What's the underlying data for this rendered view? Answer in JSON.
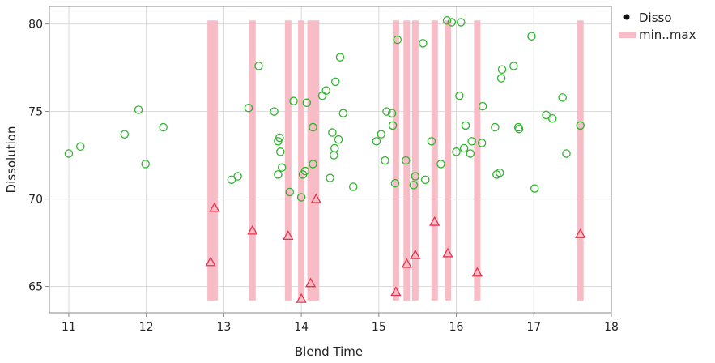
{
  "chart_data": {
    "type": "scatter",
    "title": "",
    "xlabel": "Blend Time",
    "ylabel": "Dissolution",
    "xlim": [
      10.75,
      18.0
    ],
    "ylim": [
      63.5,
      81.0
    ],
    "x_ticks": [
      11,
      12,
      13,
      14,
      15,
      16,
      17,
      18
    ],
    "y_ticks": [
      65,
      70,
      75,
      80
    ],
    "grid": true,
    "legend": {
      "position": "top-right",
      "entries": [
        {
          "label": "Disso",
          "marker": "dot"
        },
        {
          "label": "min..max",
          "marker": "band"
        }
      ]
    },
    "colors": {
      "point": "#2db52d",
      "min_point": "#e8304a",
      "band": "#f7bcc6",
      "grid": "#d9d9d9",
      "axis": "#888888"
    },
    "series": [
      {
        "name": "Disso",
        "points": [
          [
            11.0,
            72.6
          ],
          [
            11.15,
            73.0
          ],
          [
            11.72,
            73.7
          ],
          [
            11.9,
            75.1
          ],
          [
            11.99,
            72.0
          ],
          [
            12.22,
            74.1
          ],
          [
            13.1,
            71.1
          ],
          [
            13.18,
            71.3
          ],
          [
            13.32,
            75.2
          ],
          [
            13.45,
            77.6
          ],
          [
            13.65,
            75.0
          ],
          [
            13.7,
            73.3
          ],
          [
            13.72,
            73.5
          ],
          [
            13.7,
            71.4
          ],
          [
            13.73,
            72.7
          ],
          [
            13.75,
            71.8
          ],
          [
            13.85,
            70.4
          ],
          [
            13.9,
            75.6
          ],
          [
            14.0,
            70.1
          ],
          [
            14.02,
            71.4
          ],
          [
            14.05,
            71.6
          ],
          [
            14.07,
            75.5
          ],
          [
            14.15,
            74.1
          ],
          [
            14.15,
            72.0
          ],
          [
            14.27,
            75.9
          ],
          [
            14.32,
            76.2
          ],
          [
            14.37,
            71.2
          ],
          [
            14.4,
            73.8
          ],
          [
            14.42,
            72.5
          ],
          [
            14.43,
            72.9
          ],
          [
            14.44,
            76.7
          ],
          [
            14.48,
            73.4
          ],
          [
            14.5,
            78.1
          ],
          [
            14.54,
            74.9
          ],
          [
            14.67,
            70.7
          ],
          [
            14.97,
            73.3
          ],
          [
            15.03,
            73.7
          ],
          [
            15.08,
            72.2
          ],
          [
            15.1,
            75.0
          ],
          [
            15.17,
            74.9
          ],
          [
            15.18,
            74.2
          ],
          [
            15.21,
            70.9
          ],
          [
            15.24,
            79.1
          ],
          [
            15.35,
            72.2
          ],
          [
            15.45,
            70.8
          ],
          [
            15.47,
            71.3
          ],
          [
            15.57,
            78.9
          ],
          [
            15.6,
            71.1
          ],
          [
            15.68,
            73.3
          ],
          [
            15.8,
            72.0
          ],
          [
            15.88,
            80.2
          ],
          [
            15.94,
            80.1
          ],
          [
            16.0,
            72.7
          ],
          [
            16.04,
            75.9
          ],
          [
            16.06,
            80.1
          ],
          [
            16.1,
            72.9
          ],
          [
            16.12,
            74.2
          ],
          [
            16.18,
            72.6
          ],
          [
            16.2,
            73.3
          ],
          [
            16.33,
            73.2
          ],
          [
            16.34,
            75.3
          ],
          [
            16.5,
            74.1
          ],
          [
            16.52,
            71.4
          ],
          [
            16.56,
            71.5
          ],
          [
            16.58,
            76.9
          ],
          [
            16.59,
            77.4
          ],
          [
            16.74,
            77.6
          ],
          [
            16.8,
            74.1
          ],
          [
            16.81,
            74.0
          ],
          [
            16.97,
            79.3
          ],
          [
            17.01,
            70.6
          ],
          [
            17.16,
            74.8
          ],
          [
            17.24,
            74.6
          ],
          [
            17.37,
            75.8
          ],
          [
            17.42,
            72.6
          ],
          [
            17.6,
            74.2
          ]
        ]
      },
      {
        "name": "min..max",
        "bands": [
          {
            "x": 12.83,
            "min": 64.2,
            "max": 80.2
          },
          {
            "x": 12.88,
            "min": 64.2,
            "max": 80.2
          },
          {
            "x": 13.37,
            "min": 64.2,
            "max": 80.2
          },
          {
            "x": 13.83,
            "min": 64.2,
            "max": 80.2
          },
          {
            "x": 14.0,
            "min": 64.2,
            "max": 80.2
          },
          {
            "x": 14.12,
            "min": 64.2,
            "max": 80.2
          },
          {
            "x": 14.19,
            "min": 64.2,
            "max": 80.2
          },
          {
            "x": 15.22,
            "min": 64.2,
            "max": 80.2
          },
          {
            "x": 15.36,
            "min": 64.2,
            "max": 80.2
          },
          {
            "x": 15.47,
            "min": 64.2,
            "max": 80.2
          },
          {
            "x": 15.72,
            "min": 64.2,
            "max": 80.2
          },
          {
            "x": 15.89,
            "min": 64.2,
            "max": 80.2
          },
          {
            "x": 16.27,
            "min": 64.2,
            "max": 80.2
          },
          {
            "x": 17.6,
            "min": 64.2,
            "max": 80.2
          }
        ],
        "min_points": [
          [
            12.83,
            66.4
          ],
          [
            12.88,
            69.5
          ],
          [
            13.37,
            68.2
          ],
          [
            13.83,
            67.9
          ],
          [
            14.0,
            64.3
          ],
          [
            14.12,
            65.2
          ],
          [
            14.19,
            70.0
          ],
          [
            15.22,
            64.7
          ],
          [
            15.36,
            66.3
          ],
          [
            15.47,
            66.8
          ],
          [
            15.72,
            68.7
          ],
          [
            15.89,
            66.9
          ],
          [
            16.27,
            65.8
          ],
          [
            17.6,
            68.0
          ]
        ]
      }
    ]
  }
}
